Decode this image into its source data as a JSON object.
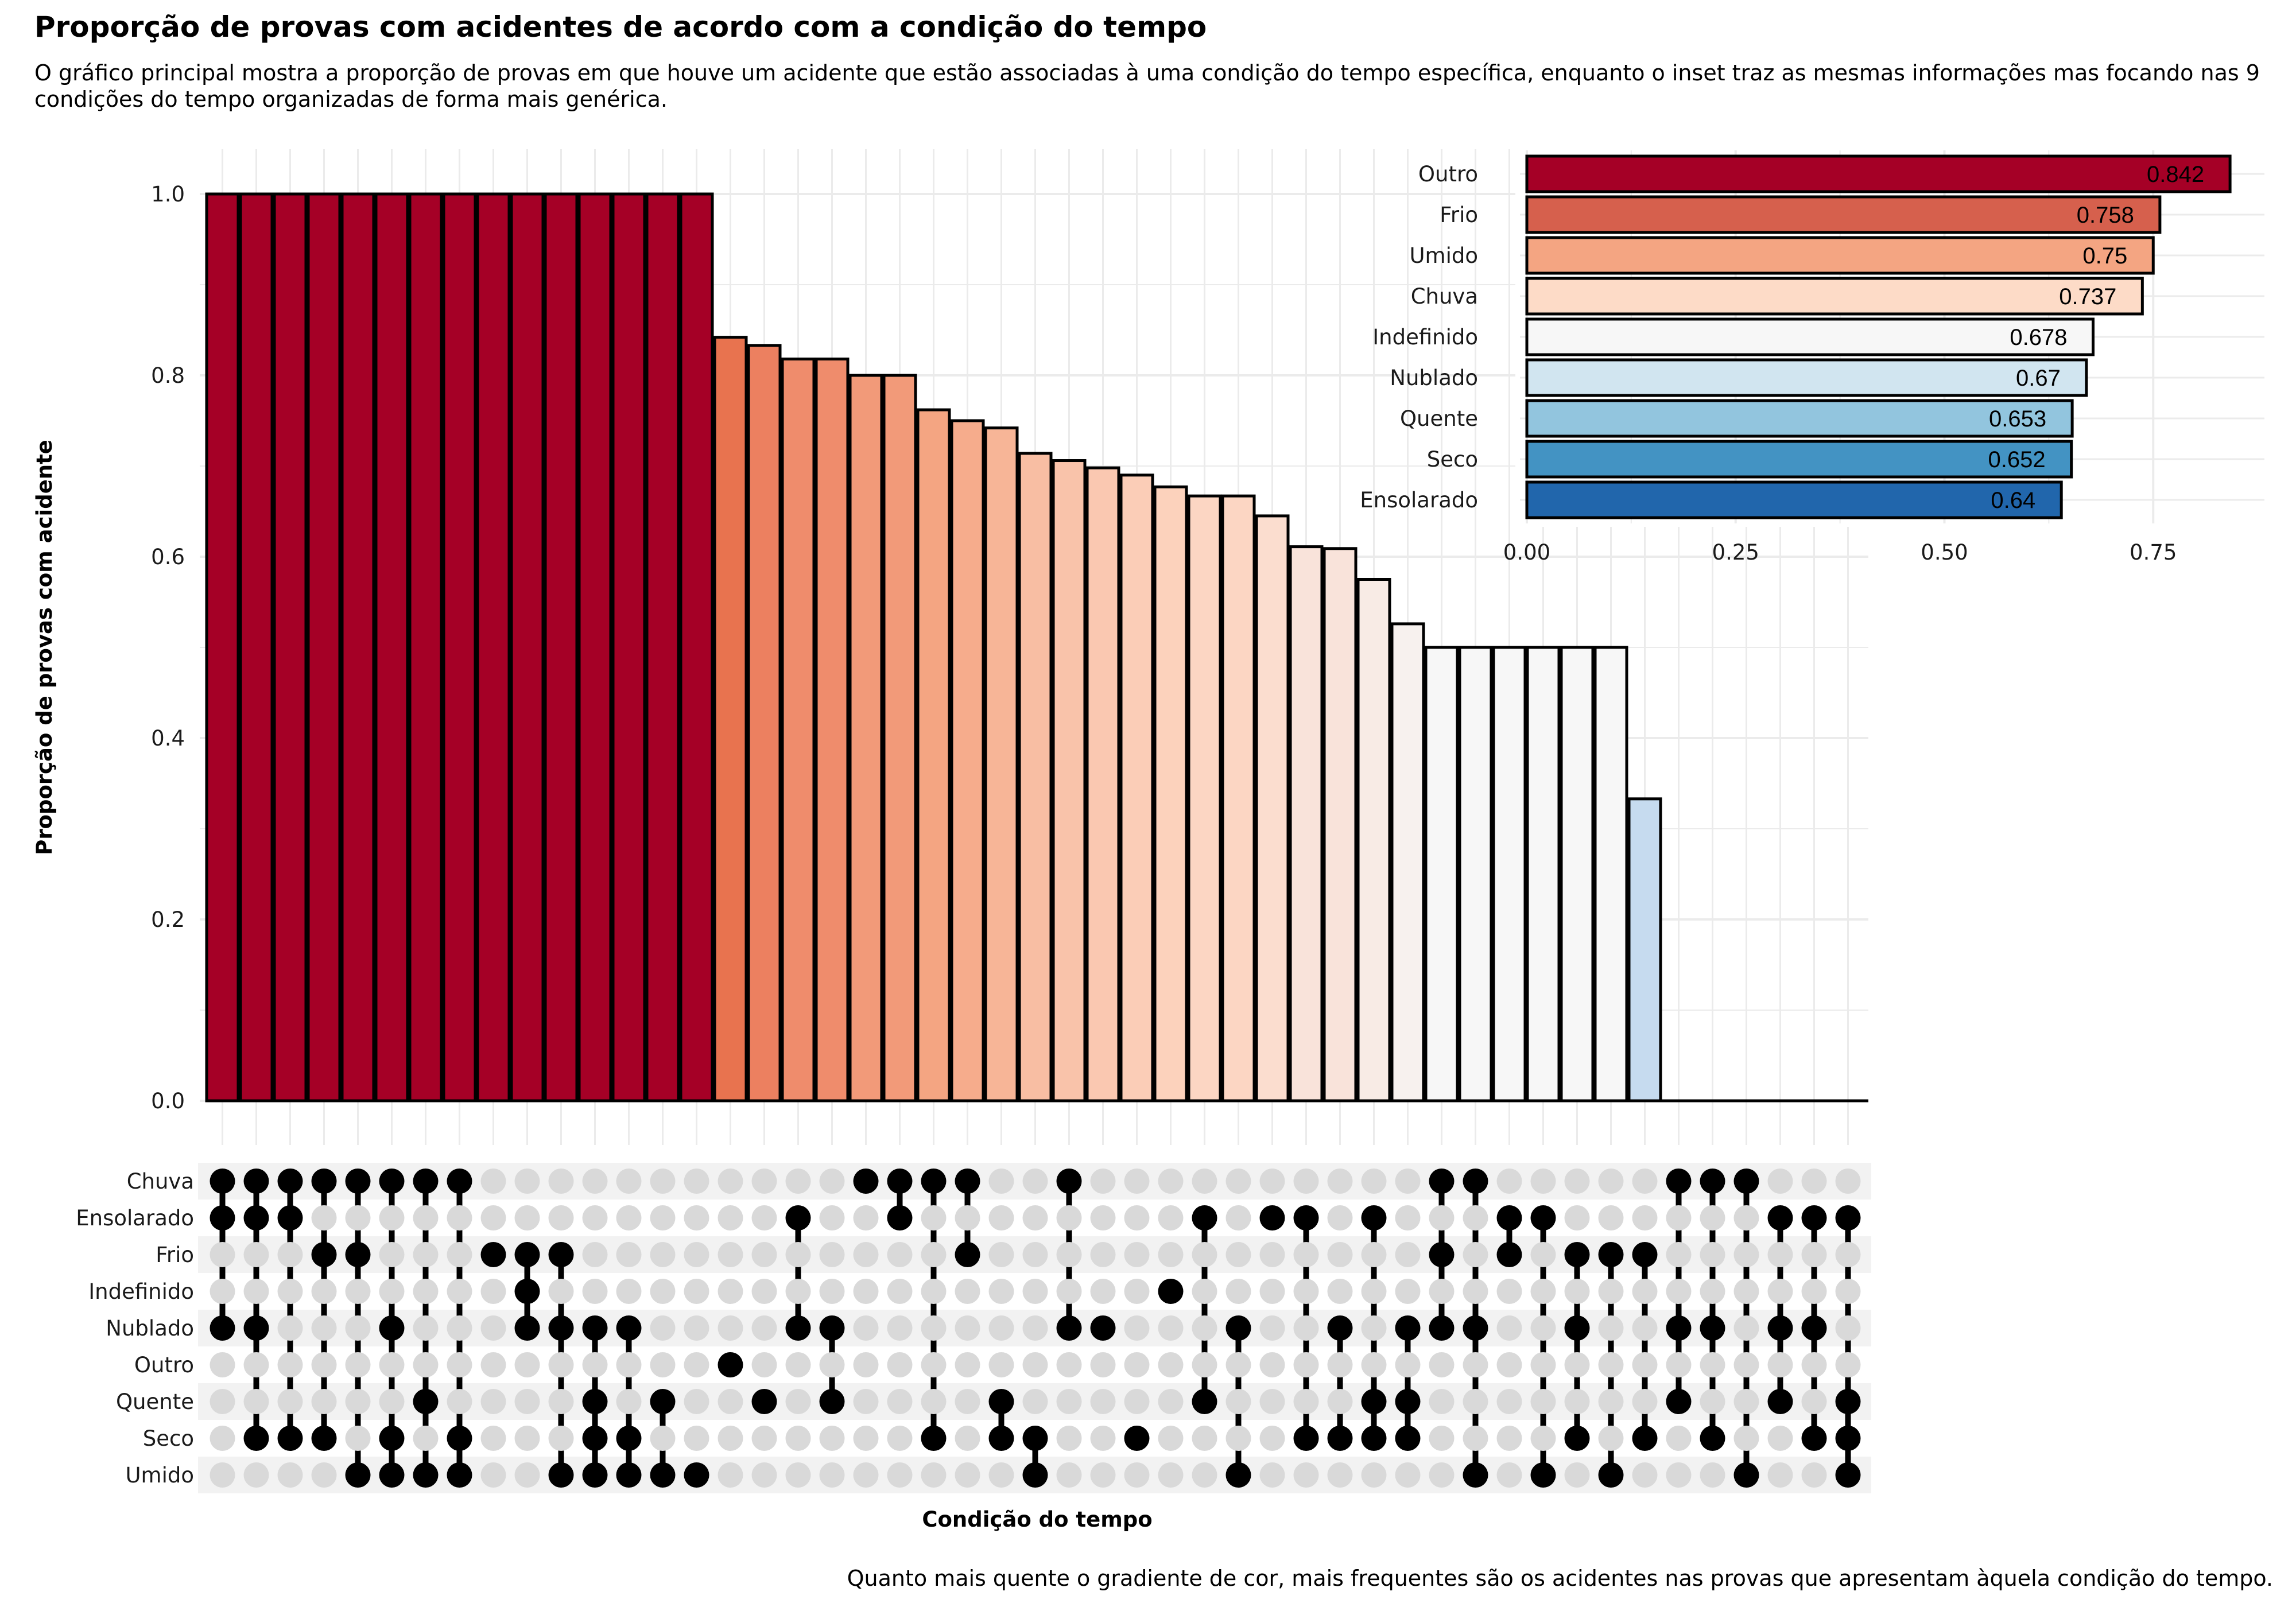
{
  "title": "Proporção de provas com acidentes de acordo com a condição do tempo",
  "subtitle": "O gráfico principal mostra a proporção de provas em que houve um acidente que estão associadas à uma condição do tempo específica, enquanto o inset traz as mesmas informações mas focando nas 9 condições do tempo organizadas de forma mais genérica.",
  "caption": "Quanto mais quente o gradiente de cor, mais frequentes são os acidentes nas provas que apresentam àquela condição do tempo.",
  "chart_data": [
    {
      "type": "bar",
      "chart": "upset-main",
      "xlabel": "Condição do tempo",
      "ylabel": "Proporção de provas com acidente",
      "ylim": [
        0,
        1
      ],
      "yticks": [
        "0.0",
        "0.2",
        "0.4",
        "0.6",
        "0.8",
        "1.0"
      ],
      "grid": true,
      "color_scale": [
        "#a50026",
        "#e8734f",
        "#f4a582",
        "#fcd2bc",
        "#f7f7f7",
        "#c6dbef"
      ],
      "sets": [
        "Chuva",
        "Ensolarado",
        "Frio",
        "Indefinido",
        "Nublado",
        "Outro",
        "Quente",
        "Seco",
        "Umido"
      ],
      "values": [
        1.0,
        1.0,
        1.0,
        1.0,
        1.0,
        1.0,
        1.0,
        1.0,
        1.0,
        1.0,
        1.0,
        1.0,
        1.0,
        1.0,
        1.0,
        0.842,
        0.833,
        0.818,
        0.818,
        0.8,
        0.8,
        0.762,
        0.75,
        0.742,
        0.714,
        0.706,
        0.698,
        0.69,
        0.677,
        0.667,
        0.667,
        0.645,
        0.611,
        0.609,
        0.575,
        0.526,
        0.5,
        0.5,
        0.5,
        0.5,
        0.5,
        0.5,
        0.333,
        0,
        0,
        0,
        0,
        0,
        0
      ],
      "bar_colors": [
        "#a50026",
        "#a50026",
        "#a50026",
        "#a50026",
        "#a50026",
        "#a50026",
        "#a50026",
        "#a50026",
        "#a50026",
        "#a50026",
        "#a50026",
        "#a50026",
        "#a50026",
        "#a50026",
        "#a50026",
        "#e8734f",
        "#ec8060",
        "#ef8c6c",
        "#ef8c6c",
        "#f29a79",
        "#f29a79",
        "#f4a582",
        "#f6ac8c",
        "#f7b597",
        "#f8bea3",
        "#f9c3aa",
        "#fac8b1",
        "#fbcdb7",
        "#fcd2bc",
        "#fcd6c3",
        "#fcd6c3",
        "#fbddcf",
        "#f9e3da",
        "#f9e3da",
        "#f8ebe5",
        "#f7f1ee",
        "#f7f7f7",
        "#f7f7f7",
        "#f7f7f7",
        "#f7f7f7",
        "#f7f7f7",
        "#f7f7f7",
        "#c6dbef",
        "#f7f7f7",
        "#f7f7f7",
        "#f7f7f7",
        "#f7f7f7",
        "#f7f7f7",
        "#f7f7f7"
      ],
      "combinations": [
        [
          "Chuva",
          "Ensolarado",
          "Nublado"
        ],
        [
          "Chuva",
          "Ensolarado",
          "Nublado",
          "Seco"
        ],
        [
          "Chuva",
          "Ensolarado",
          "Seco"
        ],
        [
          "Chuva",
          "Frio",
          "Seco"
        ],
        [
          "Chuva",
          "Frio",
          "Umido"
        ],
        [
          "Chuva",
          "Nublado",
          "Seco",
          "Umido"
        ],
        [
          "Chuva",
          "Quente",
          "Umido"
        ],
        [
          "Chuva",
          "Seco",
          "Umido"
        ],
        [
          "Frio"
        ],
        [
          "Frio",
          "Indefinido",
          "Nublado"
        ],
        [
          "Frio",
          "Nublado",
          "Umido"
        ],
        [
          "Nublado",
          "Quente",
          "Seco",
          "Umido"
        ],
        [
          "Nublado",
          "Seco",
          "Umido"
        ],
        [
          "Quente",
          "Umido"
        ],
        [
          "Umido"
        ],
        [
          "Outro"
        ],
        [
          "Quente"
        ],
        [
          "Ensolarado",
          "Nublado"
        ],
        [
          "Nublado",
          "Quente"
        ],
        [
          "Chuva"
        ],
        [
          "Chuva",
          "Ensolarado"
        ],
        [
          "Chuva",
          "Seco"
        ],
        [
          "Chuva",
          "Frio"
        ],
        [
          "Quente",
          "Seco"
        ],
        [
          "Seco",
          "Umido"
        ],
        [
          "Chuva",
          "Nublado"
        ],
        [
          "Nublado"
        ],
        [
          "Seco"
        ],
        [
          "Indefinido"
        ],
        [
          "Ensolarado",
          "Quente"
        ],
        [
          "Nublado",
          "Umido"
        ],
        [
          "Ensolarado"
        ],
        [
          "Ensolarado",
          "Seco"
        ],
        [
          "Nublado",
          "Seco"
        ],
        [
          "Ensolarado",
          "Quente",
          "Seco"
        ],
        [
          "Nublado",
          "Quente",
          "Seco"
        ],
        [
          "Chuva",
          "Frio",
          "Nublado"
        ],
        [
          "Chuva",
          "Nublado",
          "Umido"
        ],
        [
          "Ensolarado",
          "Frio"
        ],
        [
          "Ensolarado",
          "Umido"
        ],
        [
          "Frio",
          "Nublado",
          "Seco"
        ],
        [
          "Frio",
          "Umido"
        ],
        [
          "Frio",
          "Seco"
        ],
        [
          "Chuva",
          "Nublado",
          "Quente"
        ],
        [
          "Chuva",
          "Nublado",
          "Seco"
        ],
        [
          "Chuva",
          "Umido"
        ],
        [
          "Ensolarado",
          "Nublado",
          "Quente"
        ],
        [
          "Ensolarado",
          "Nublado",
          "Seco"
        ],
        [
          "Ensolarado",
          "Quente",
          "Seco",
          "Umido"
        ]
      ]
    },
    {
      "type": "bar",
      "chart": "inset",
      "orientation": "horizontal",
      "categories": [
        "Outro",
        "Frio",
        "Umido",
        "Chuva",
        "Indefinido",
        "Nublado",
        "Quente",
        "Seco",
        "Ensolarado"
      ],
      "values": [
        0.842,
        0.758,
        0.75,
        0.737,
        0.678,
        0.67,
        0.653,
        0.652,
        0.64
      ],
      "labels": [
        "0.842",
        "0.758",
        "0.75",
        "0.737",
        "0.678",
        "0.67",
        "0.653",
        "0.652",
        "0.64"
      ],
      "colors": [
        "#a50026",
        "#d6604d",
        "#f4a582",
        "#fddbc7",
        "#f7f7f7",
        "#d1e5f0",
        "#92c5de",
        "#4393c3",
        "#2166ac"
      ],
      "xlim": [
        0,
        0.88
      ],
      "xticks": [
        "0.00",
        "0.25",
        "0.50",
        "0.75"
      ],
      "grid": true
    }
  ]
}
